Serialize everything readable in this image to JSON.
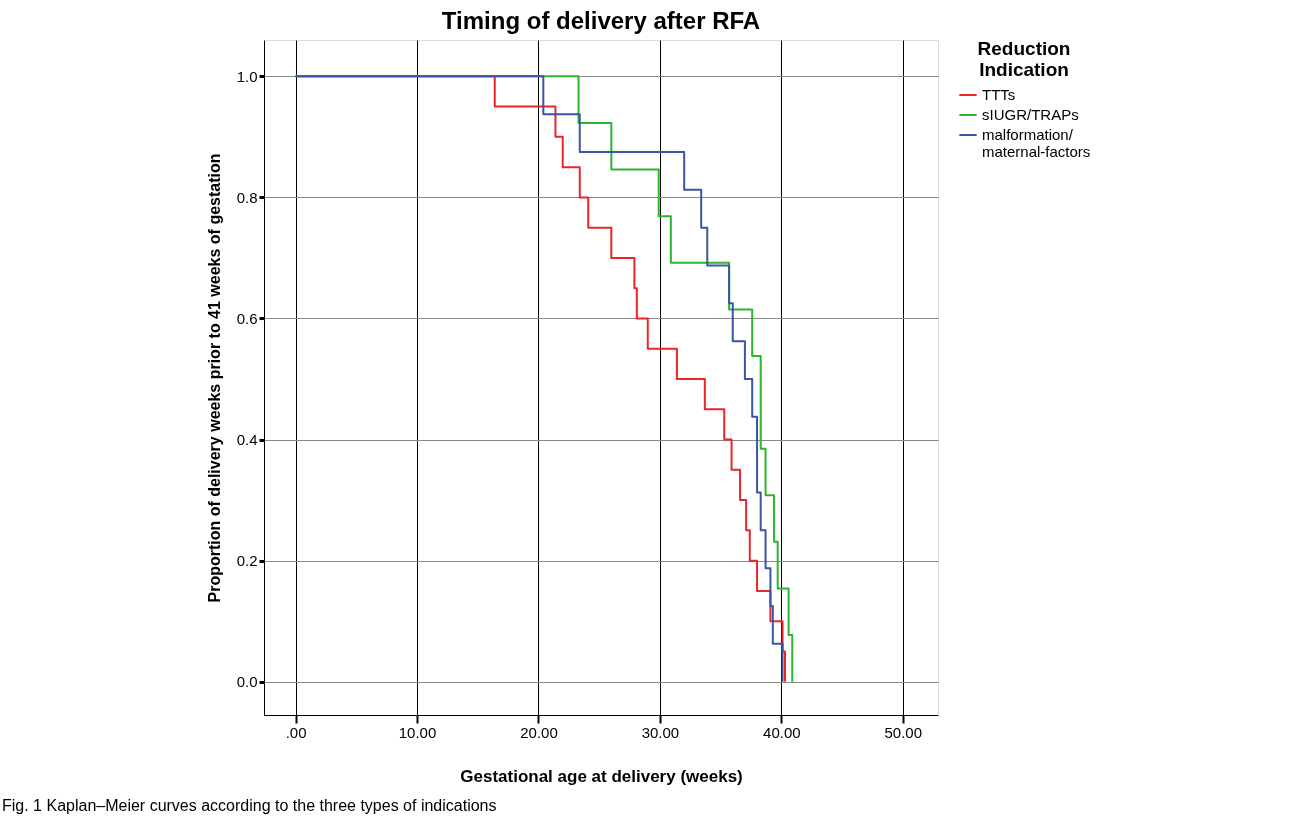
{
  "chart_data": {
    "type": "step",
    "title": "Timing of delivery after RFA",
    "xlabel": "Gestational age at delivery (weeks)",
    "ylabel": "Proportion of delivery weeks prior to 41 weeks of gestation",
    "legend_title": "Reduction Indication",
    "xlim": [
      -2.6,
      52.9
    ],
    "ylim": [
      -0.055,
      1.06
    ],
    "xticks": [
      {
        "value": 0,
        "label": ".00"
      },
      {
        "value": 10,
        "label": "10.00"
      },
      {
        "value": 20,
        "label": "20.00"
      },
      {
        "value": 30,
        "label": "30.00"
      },
      {
        "value": 40,
        "label": "40.00"
      },
      {
        "value": 50,
        "label": "50.00"
      }
    ],
    "yticks": [
      {
        "value": 0,
        "label": "0.0"
      },
      {
        "value": 0.2,
        "label": "0.2"
      },
      {
        "value": 0.4,
        "label": "0.4"
      },
      {
        "value": 0.6,
        "label": "0.6"
      },
      {
        "value": 0.8,
        "label": "0.8"
      },
      {
        "value": 1,
        "label": "1.0"
      }
    ],
    "grid": true,
    "legend": "top right",
    "line_style": "solid",
    "marker": "none",
    "series": [
      {
        "name": "TTTs",
        "color": "#e8262a",
        "x": [
          0,
          16.4,
          21.4,
          22.0,
          23.4,
          24.1,
          26.0,
          27.9,
          28.1,
          29.0,
          31.4,
          33.7,
          35.3,
          35.9,
          36.6,
          37.1,
          37.4,
          38.0,
          39.1,
          40.1,
          40.3
        ],
        "values": [
          1,
          0.95,
          0.9,
          0.85,
          0.8,
          0.75,
          0.7,
          0.65,
          0.6,
          0.55,
          0.5,
          0.45,
          0.4,
          0.35,
          0.3,
          0.25,
          0.2,
          0.15,
          0.1,
          0.05,
          0
        ]
      },
      {
        "name": "sIUGR/TRAPs",
        "color": "#2db52d",
        "x": [
          0,
          23.3,
          26.0,
          29.9,
          30.9,
          35.7,
          37.6,
          38.3,
          38.7,
          39.4,
          39.7,
          40.6,
          40.9
        ],
        "values": [
          1,
          0.923,
          0.846,
          0.769,
          0.692,
          0.615,
          0.538,
          0.385,
          0.308,
          0.231,
          0.154,
          0.077,
          0
        ]
      },
      {
        "name": "malformation/maternal-factors",
        "color": "#3a55a4",
        "x": [
          0,
          20.4,
          23.4,
          32.0,
          33.4,
          33.9,
          35.7,
          36.0,
          37.0,
          37.6,
          38.0,
          38.3,
          38.7,
          39.1,
          39.3,
          40.1
        ],
        "values": [
          1,
          0.9375,
          0.875,
          0.8125,
          0.75,
          0.6875,
          0.625,
          0.5625,
          0.5,
          0.4375,
          0.3125,
          0.25,
          0.1875,
          0.125,
          0.0625,
          0
        ]
      }
    ],
    "annotations": [
      "Fig. 1  Kaplan–Meier curves according to the three types of indications"
    ]
  }
}
